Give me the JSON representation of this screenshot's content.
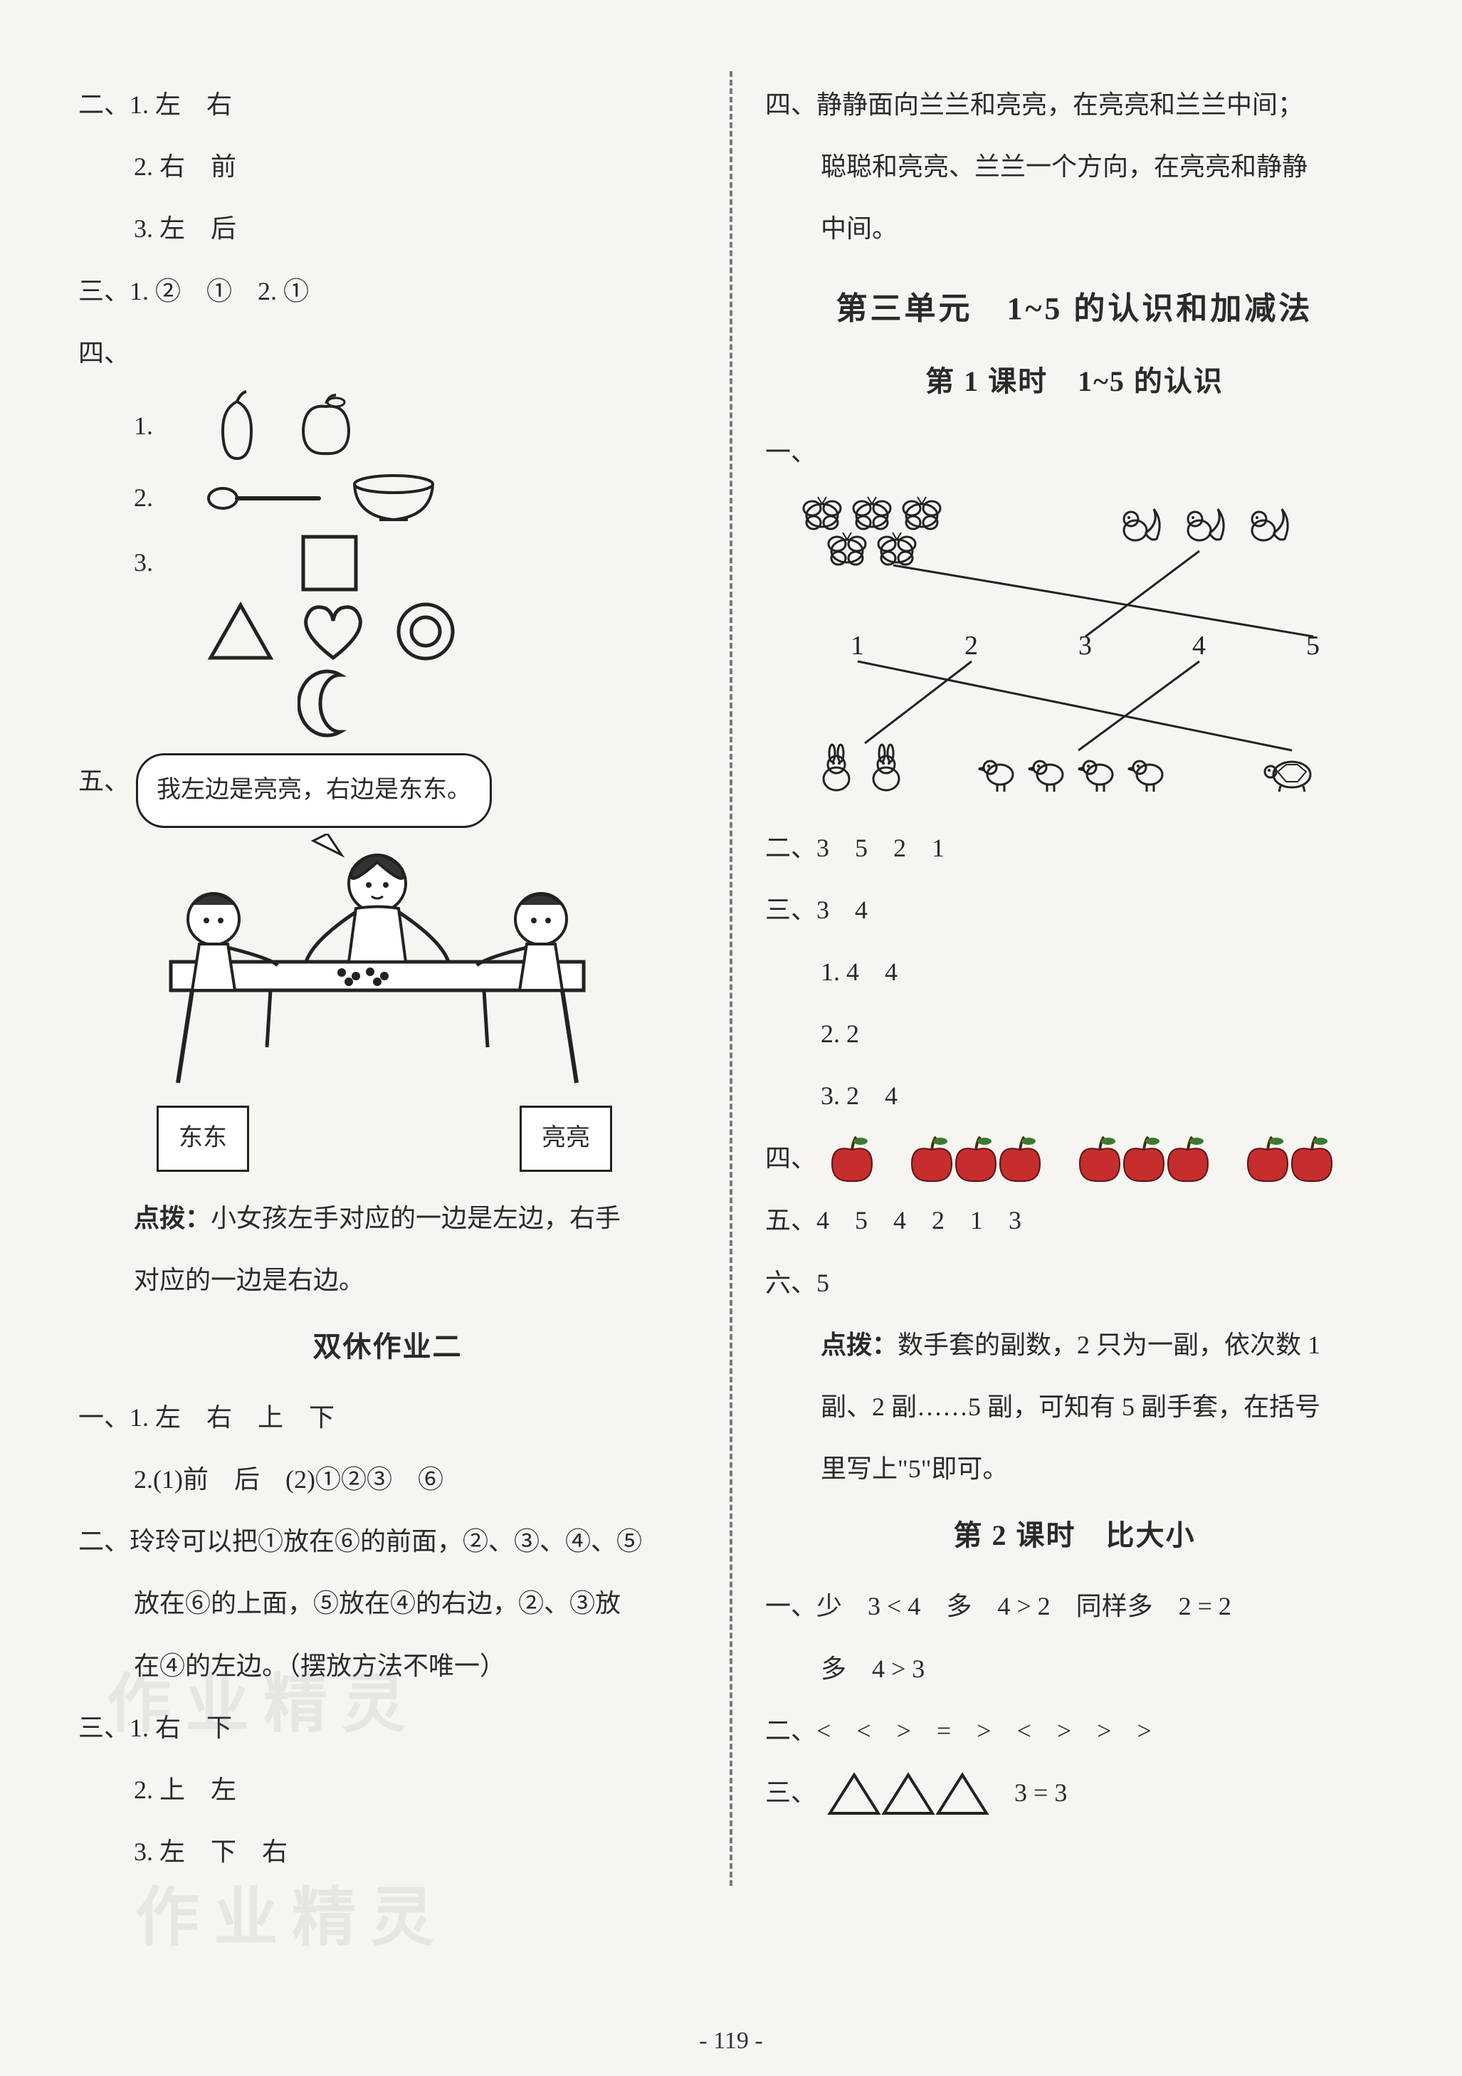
{
  "page_number": "- 119 -",
  "colors": {
    "text": "#2a2a2a",
    "stroke": "#222222",
    "bg": "#f7f5f1",
    "red_apple": "#c62d2d",
    "green_leaf": "#3c7a2e",
    "watermark": "rgba(120,120,120,0.12)"
  },
  "left": {
    "sec2": {
      "label": "二、",
      "items": [
        "1. 左　右",
        "2. 右　前",
        "3. 左　后"
      ]
    },
    "sec3": {
      "label": "三、",
      "text": "1. ②　①　2. ①"
    },
    "sec4": {
      "label": "四、",
      "rows": [
        "1.",
        "2.",
        "3."
      ]
    },
    "sec5": {
      "label": "五、",
      "speech": "我左边是亮亮，右边是东东。",
      "left_box": "东东",
      "right_box": "亮亮",
      "tip_label": "点拨：",
      "tip_text": "小女孩左手对应的一边是左边，右手对应的一边是右边。"
    },
    "hw2_title": "双休作业二",
    "hw2": {
      "s1": {
        "label": "一、",
        "l1": "1. 左　右　上　下",
        "l2": "2.(1)前　后　(2)①②③　⑥"
      },
      "s2": {
        "label": "二、",
        "text1": "玲玲可以把①放在⑥的前面，②、③、④、⑤",
        "text2": "放在⑥的上面，⑤放在④的右边，②、③放",
        "text3": "在④的左边。（摆放方法不唯一）"
      },
      "s3": {
        "label": "三、",
        "l1": "1. 右　下",
        "l2": "2. 上　左",
        "l3": "3. 左　下　右"
      }
    }
  },
  "right": {
    "sec4": {
      "label": "四、",
      "text1": "静静面向兰兰和亮亮，在亮亮和兰兰中间；",
      "text2": "聪聪和亮亮、兰兰一个方向，在亮亮和静静",
      "text3": "中间。"
    },
    "unit3_title": "第三单元　1~5 的认识和加减法",
    "lesson1_title": "第 1 课时　1~5 的认识",
    "match": {
      "label": "一、",
      "numbers": [
        "1",
        "2",
        "3",
        "4",
        "5"
      ],
      "top_counts": {
        "butterflies": 5,
        "squirrels": 3
      },
      "bottom_counts": {
        "rabbits": 2,
        "birds": 4,
        "turtle": 1
      },
      "lines": [
        {
          "from_top": 0,
          "to_num": 4
        },
        {
          "from_top": 1,
          "to_num": 2
        },
        {
          "from_num": 0,
          "to_bottom": 2
        },
        {
          "from_num": 1,
          "to_bottom": 0
        },
        {
          "from_num": 3,
          "to_bottom": 1
        }
      ]
    },
    "l1_s2": {
      "label": "二、",
      "text": "3　5　2　1"
    },
    "l1_s3": {
      "label": "三、",
      "head": "3　4",
      "items": [
        "1. 4　4",
        "2. 2",
        "3. 2　4"
      ]
    },
    "l1_s4": {
      "label": "四、",
      "groups": [
        1,
        3,
        3,
        2
      ],
      "apple_color": "#c62d2d",
      "leaf_color": "#3c7a2e"
    },
    "l1_s5": {
      "label": "五、",
      "text": "4　5　4　2　1　3"
    },
    "l1_s6": {
      "label": "六、",
      "text": "5",
      "tip_label": "点拨：",
      "tip1": "数手套的副数，2 只为一副，依次数 1",
      "tip2": "副、2 副……5 副，可知有 5 副手套，在括号",
      "tip3": "里写上\"5\"即可。"
    },
    "lesson2_title": "第 2 课时　比大小",
    "l2_s1": {
      "label": "一、",
      "line1": "少　3 < 4　多　4 > 2　同样多　2 = 2",
      "line2": "多　4 > 3"
    },
    "l2_s2": {
      "label": "二、",
      "text": "<　<　>　=　>　<　>　>　>"
    },
    "l2_s3": {
      "label": "三、",
      "triangles": 3,
      "text": "3 = 3"
    }
  },
  "watermarks": {
    "w1": "作业精灵",
    "w2": "作业精灵"
  }
}
